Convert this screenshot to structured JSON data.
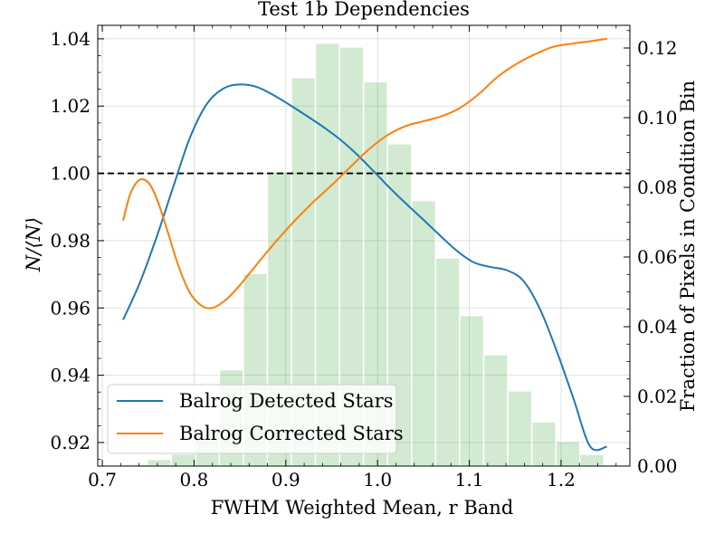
{
  "chart_data": {
    "type": "line",
    "title": "Test 1b Dependencies",
    "xlabel": "FWHM Weighted Mean, r Band",
    "ylabel": "N/⟨N⟩",
    "ylabel_right": "Fraction of Pixels in Condition Bin",
    "xlim": [
      0.695,
      1.275
    ],
    "ylim": [
      0.913,
      1.044
    ],
    "y2lim": [
      0.0,
      0.1265
    ],
    "xticks": [
      "0.7",
      "0.8",
      "0.9",
      "1.0",
      "1.1",
      "1.2"
    ],
    "xtick_values": [
      0.7,
      0.8,
      0.9,
      1.0,
      1.1,
      1.2
    ],
    "yticks": [
      "0.92",
      "0.94",
      "0.96",
      "0.98",
      "1.00",
      "1.02",
      "1.04"
    ],
    "ytick_values": [
      0.92,
      0.94,
      0.96,
      0.98,
      1.0,
      1.02,
      1.04
    ],
    "y2ticks": [
      "0.00",
      "0.02",
      "0.04",
      "0.06",
      "0.08",
      "0.10",
      "0.12"
    ],
    "y2tick_values": [
      0.0,
      0.02,
      0.04,
      0.06,
      0.08,
      0.1,
      0.12
    ],
    "grid": true,
    "legend_position": "lower-left",
    "reference_line": {
      "y": 1.0,
      "style": "dashed",
      "color": "#000000"
    },
    "histogram": {
      "color": "#2ca02c",
      "opacity": 0.22,
      "bins": [
        {
          "x0": 0.7227,
          "x1": 0.7489,
          "value": 0.0006
        },
        {
          "x0": 0.7489,
          "x1": 0.7751,
          "value": 0.0019
        },
        {
          "x0": 0.7751,
          "x1": 0.8013,
          "value": 0.0035
        },
        {
          "x0": 0.8013,
          "x1": 0.8275,
          "value": 0.0112
        },
        {
          "x0": 0.8275,
          "x1": 0.8537,
          "value": 0.0276
        },
        {
          "x0": 0.8537,
          "x1": 0.8799,
          "value": 0.0553
        },
        {
          "x0": 0.8799,
          "x1": 0.9061,
          "value": 0.0845
        },
        {
          "x0": 0.9061,
          "x1": 0.9323,
          "value": 0.1115
        },
        {
          "x0": 0.9323,
          "x1": 0.9585,
          "value": 0.1214
        },
        {
          "x0": 0.9585,
          "x1": 0.9847,
          "value": 0.1203
        },
        {
          "x0": 0.9847,
          "x1": 1.0109,
          "value": 0.1103
        },
        {
          "x0": 1.0109,
          "x1": 1.0371,
          "value": 0.0925
        },
        {
          "x0": 1.0371,
          "x1": 1.0633,
          "value": 0.0762
        },
        {
          "x0": 1.0633,
          "x1": 1.0895,
          "value": 0.0597
        },
        {
          "x0": 1.0895,
          "x1": 1.1157,
          "value": 0.0432
        },
        {
          "x0": 1.1157,
          "x1": 1.1419,
          "value": 0.032
        },
        {
          "x0": 1.1419,
          "x1": 1.1681,
          "value": 0.0216
        },
        {
          "x0": 1.1681,
          "x1": 1.1943,
          "value": 0.0127
        },
        {
          "x0": 1.1943,
          "x1": 1.2205,
          "value": 0.0071
        },
        {
          "x0": 1.2205,
          "x1": 1.2467,
          "value": 0.0034
        }
      ]
    },
    "series": [
      {
        "name": "Balrog Detected Stars",
        "color": "#1f77b4",
        "x": [
          0.7227,
          0.7409,
          0.7591,
          0.7773,
          0.7955,
          0.8136,
          0.8318,
          0.85,
          0.8682,
          0.8864,
          0.9045,
          0.9227,
          0.9409,
          0.9591,
          0.9773,
          0.9955,
          1.0136,
          1.0318,
          1.05,
          1.0682,
          1.0864,
          1.1045,
          1.1227,
          1.1409,
          1.1591,
          1.1773,
          1.1955,
          1.2136,
          1.2318,
          1.25
        ],
        "y": [
          0.9565,
          0.9675,
          0.981,
          0.996,
          1.0106,
          1.0205,
          1.0252,
          1.0264,
          1.0257,
          1.0233,
          1.0203,
          1.0171,
          1.0138,
          1.0101,
          1.0057,
          1.0007,
          0.9956,
          0.9908,
          0.9862,
          0.9815,
          0.977,
          0.9736,
          0.9722,
          0.9712,
          0.968,
          0.9595,
          0.947,
          0.933,
          0.9188,
          0.9188
        ]
      },
      {
        "name": "Balrog Corrected Stars",
        "color": "#ff7f0e",
        "x": [
          0.7227,
          0.73,
          0.738,
          0.745,
          0.753,
          0.762,
          0.772,
          0.783,
          0.795,
          0.808,
          0.82,
          0.835,
          0.85,
          0.87,
          0.89,
          0.91,
          0.93,
          0.95,
          0.97,
          0.99,
          1.01,
          1.03,
          1.05,
          1.07,
          1.09,
          1.11,
          1.13,
          1.15,
          1.17,
          1.19,
          1.21,
          1.23,
          1.25
        ],
        "y": [
          0.986,
          0.9935,
          0.9975,
          0.9982,
          0.9962,
          0.9905,
          0.982,
          0.9725,
          0.9647,
          0.9607,
          0.96,
          0.9625,
          0.9668,
          0.9735,
          0.98,
          0.986,
          0.9915,
          0.9965,
          1.0018,
          1.007,
          1.0112,
          1.014,
          1.0155,
          1.017,
          1.0195,
          1.0235,
          1.0285,
          1.0323,
          1.0352,
          1.0375,
          1.0385,
          1.0392,
          1.04
        ]
      }
    ]
  }
}
